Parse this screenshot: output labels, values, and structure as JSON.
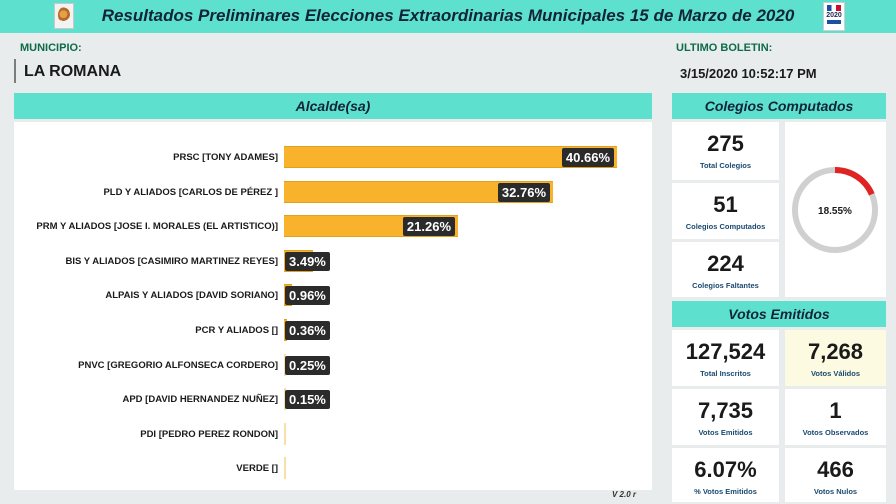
{
  "header": {
    "title": "Resultados Preliminares Elecciones Extraordinarias Municipales 15 de Marzo de 2020",
    "badge_year": "2020"
  },
  "municipio": {
    "label": "MUNICIPIO:",
    "name": "LA ROMANA"
  },
  "boletin": {
    "label": "ULTIMO BOLETIN:",
    "value": "3/15/2020 10:52:17 PM"
  },
  "chart_data": {
    "type": "bar",
    "orientation": "horizontal",
    "title": "Alcalde(sa)",
    "categories": [
      "PRSC [TONY ADAMES]",
      "PLD Y ALIADOS [CARLOS DE PÉREZ ]",
      "PRM Y ALIADOS [JOSE I. MORALES (EL ARTISTICO)]",
      "BIS Y ALIADOS [CASIMIRO MARTINEZ REYES]",
      "ALPAIS Y ALIADOS [DAVID SORIANO]",
      "PCR Y ALIADOS []",
      "PNVC [GREGORIO ALFONSECA CORDERO]",
      "APD [DAVID HERNANDEZ NUÑEZ]",
      "PDI [PEDRO PEREZ RONDON]",
      "VERDE []"
    ],
    "values": [
      40.66,
      32.76,
      21.26,
      3.49,
      0.96,
      0.36,
      0.25,
      0.15,
      0,
      0
    ],
    "value_labels": [
      "40.66%",
      "32.76%",
      "21.26%",
      "3.49%",
      "0.96%",
      "0.36%",
      "0.25%",
      "0.15%",
      "",
      ""
    ],
    "xlim": [
      0,
      50
    ],
    "bar_color": "#f8b22b",
    "label_color": "#2b2b2b",
    "grid": false
  },
  "colegios": {
    "title": "Colegios Computados",
    "total_value": "275",
    "total_label": "Total Colegios",
    "computados_value": "51",
    "computados_label": "Colegios Computados",
    "faltantes_value": "224",
    "faltantes_label": "Colegios Faltantes",
    "gauge_label": "18.55%",
    "gauge_fraction": 0.1855,
    "gauge_color": "#e02424",
    "gauge_track_color": "#d0d0d0"
  },
  "votos": {
    "title": "Votos Emitidos",
    "inscritos_value": "127,524",
    "inscritos_label": "Total Inscritos",
    "validos_value": "7,268",
    "validos_label": "Votos Válidos",
    "emitidos_value": "7,735",
    "emitidos_label": "Votos Emitidos",
    "observados_value": "1",
    "observados_label": "Votos Observados",
    "pct_emitidos_value": "6.07%",
    "pct_emitidos_label": "% Votos Emitidos",
    "nulos_value": "466",
    "nulos_label": "Votos Nulos"
  },
  "footer": {
    "version": "V 2.0 r"
  }
}
